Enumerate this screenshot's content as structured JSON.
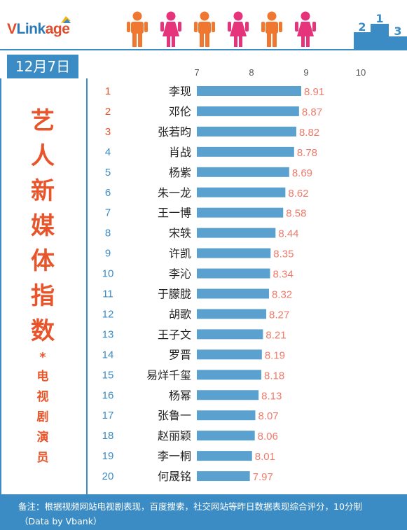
{
  "header": {
    "logo_v": "V",
    "logo_link": "Link",
    "logo_age": "age",
    "podium_numbers": [
      "2",
      "1",
      "3"
    ],
    "colors": {
      "male": "#f0772f",
      "female": "#e6347c",
      "accent": "#3b8cc4"
    }
  },
  "date": "12月7日",
  "title_chars": [
    "艺",
    "人",
    "新",
    "媒",
    "体",
    "指",
    "数"
  ],
  "star": "*",
  "subtitle_chars": [
    "电",
    "视",
    "剧",
    "演",
    "员"
  ],
  "footer": {
    "note": "备注：根据视频网站电视剧表现，百度搜索，社交网站等昨日数据表现综合评分，10分制",
    "source": "（Data by Vbank）"
  },
  "chart_data": {
    "type": "bar",
    "orientation": "horizontal",
    "title": "",
    "xlim": [
      7,
      10
    ],
    "xticks": [
      7,
      8,
      9,
      10
    ],
    "grid": false,
    "categories": [
      "李现",
      "邓伦",
      "张若昀",
      "肖战",
      "杨紫",
      "朱一龙",
      "王一博",
      "宋轶",
      "许凯",
      "李沁",
      "于朦胧",
      "胡歌",
      "王子文",
      "罗晋",
      "易烊千玺",
      "杨幂",
      "张鲁一",
      "赵丽颖",
      "李一桐",
      "何晟铭"
    ],
    "ranks": [
      "1",
      "2",
      "3",
      "4",
      "5",
      "6",
      "7",
      "8",
      "9",
      "10",
      "11",
      "12",
      "13",
      "14",
      "15",
      "16",
      "17",
      "18",
      "19",
      "20"
    ],
    "values": [
      8.91,
      8.87,
      8.82,
      8.78,
      8.69,
      8.62,
      8.58,
      8.44,
      8.35,
      8.34,
      8.32,
      8.27,
      8.21,
      8.19,
      8.18,
      8.13,
      8.07,
      8.06,
      8.01,
      7.97
    ],
    "colors": {
      "bar": "#5aa1cf",
      "value_label": "#ef7a6a",
      "rank_top": "#e8552b",
      "rank": "#3b8cc4"
    }
  }
}
